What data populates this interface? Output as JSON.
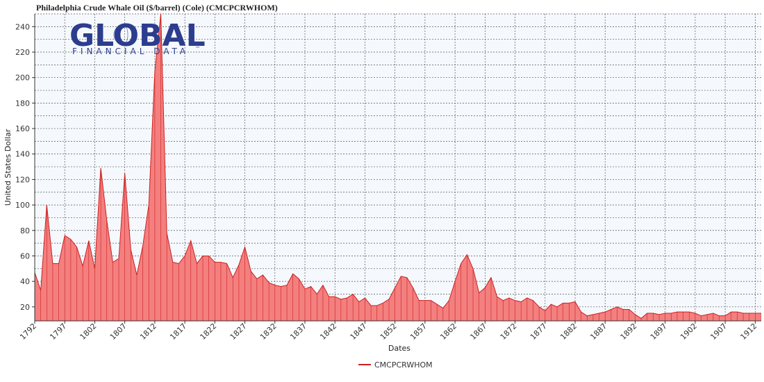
{
  "chart_title": "Philadelphia Crude Whale Oil ($/barrel)  (Cole) (CMCPCRWHOM)",
  "logo": {
    "main": "GLOBAL",
    "sub": "FINANCIAL DATA",
    "mark": "™"
  },
  "colors": {
    "fill": "#f47f7f",
    "line": "#cc1f1f",
    "plot_bg": "#f5f9fd",
    "grid": "#555555",
    "logo": "#2c3d8f"
  },
  "chart_data": {
    "type": "area",
    "title": "Philadelphia Crude Whale Oil ($/barrel)  (Cole) (CMCPCRWHOM)",
    "xlabel": "Dates",
    "ylabel": "United States Dollar",
    "ylim": [
      9,
      250
    ],
    "xlim": [
      1792,
      1913
    ],
    "x_ticks": [
      "1792",
      "1797",
      "1802",
      "1807",
      "1812",
      "1817",
      "1822",
      "1827",
      "1832",
      "1837",
      "1842",
      "1847",
      "1852",
      "1857",
      "1862",
      "1867",
      "1872",
      "1877",
      "1882",
      "1887",
      "1892",
      "1897",
      "1902",
      "1907",
      "1912"
    ],
    "y_ticks": [
      20,
      40,
      60,
      80,
      100,
      120,
      140,
      160,
      180,
      200,
      220,
      240
    ],
    "grid": true,
    "legend_position": "bottom-center",
    "series": [
      {
        "name": "CMCPCRWHOM",
        "x": [
          1792,
          1793,
          1794,
          1795,
          1796,
          1797,
          1798,
          1799,
          1800,
          1801,
          1802,
          1803,
          1804,
          1805,
          1806,
          1807,
          1808,
          1809,
          1810,
          1811,
          1812,
          1813,
          1814,
          1815,
          1816,
          1817,
          1818,
          1819,
          1820,
          1821,
          1822,
          1823,
          1824,
          1825,
          1826,
          1827,
          1828,
          1829,
          1830,
          1831,
          1832,
          1833,
          1834,
          1835,
          1836,
          1837,
          1838,
          1839,
          1840,
          1841,
          1842,
          1843,
          1844,
          1845,
          1846,
          1847,
          1848,
          1849,
          1850,
          1851,
          1852,
          1853,
          1854,
          1855,
          1856,
          1857,
          1858,
          1859,
          1860,
          1861,
          1862,
          1863,
          1864,
          1865,
          1866,
          1867,
          1868,
          1869,
          1870,
          1871,
          1872,
          1873,
          1874,
          1875,
          1876,
          1877,
          1878,
          1879,
          1880,
          1881,
          1882,
          1883,
          1884,
          1885,
          1886,
          1887,
          1888,
          1889,
          1890,
          1891,
          1892,
          1893,
          1894,
          1895,
          1896,
          1897,
          1898,
          1899,
          1900,
          1901,
          1902,
          1903,
          1904,
          1905,
          1906,
          1907,
          1908,
          1909,
          1910,
          1911,
          1912,
          1913
        ],
        "values": [
          47,
          33,
          100,
          54,
          54,
          76,
          73,
          67,
          52,
          72,
          50,
          129,
          88,
          55,
          58,
          125,
          65,
          45,
          68,
          100,
          205,
          250,
          78,
          55,
          54,
          60,
          72,
          54,
          60,
          60,
          55,
          55,
          54,
          43,
          53,
          67,
          48,
          42,
          45,
          39,
          37,
          36,
          37,
          46,
          42,
          34,
          36,
          30,
          37,
          28,
          28,
          26,
          27,
          30,
          24,
          27,
          21,
          21,
          23,
          26,
          35,
          44,
          43,
          35,
          25,
          25,
          25,
          22,
          19,
          25,
          40,
          54,
          61,
          50,
          31,
          35,
          43,
          28,
          25,
          27,
          25,
          24,
          27,
          25,
          20,
          17,
          22,
          20,
          23,
          23,
          24,
          16,
          13,
          14,
          15,
          16,
          18,
          20,
          18,
          18,
          14,
          11,
          15,
          15,
          14,
          15,
          15,
          16,
          16,
          16,
          15,
          13,
          14,
          15,
          13,
          13,
          16,
          16,
          15,
          15,
          15,
          15
        ]
      }
    ]
  }
}
